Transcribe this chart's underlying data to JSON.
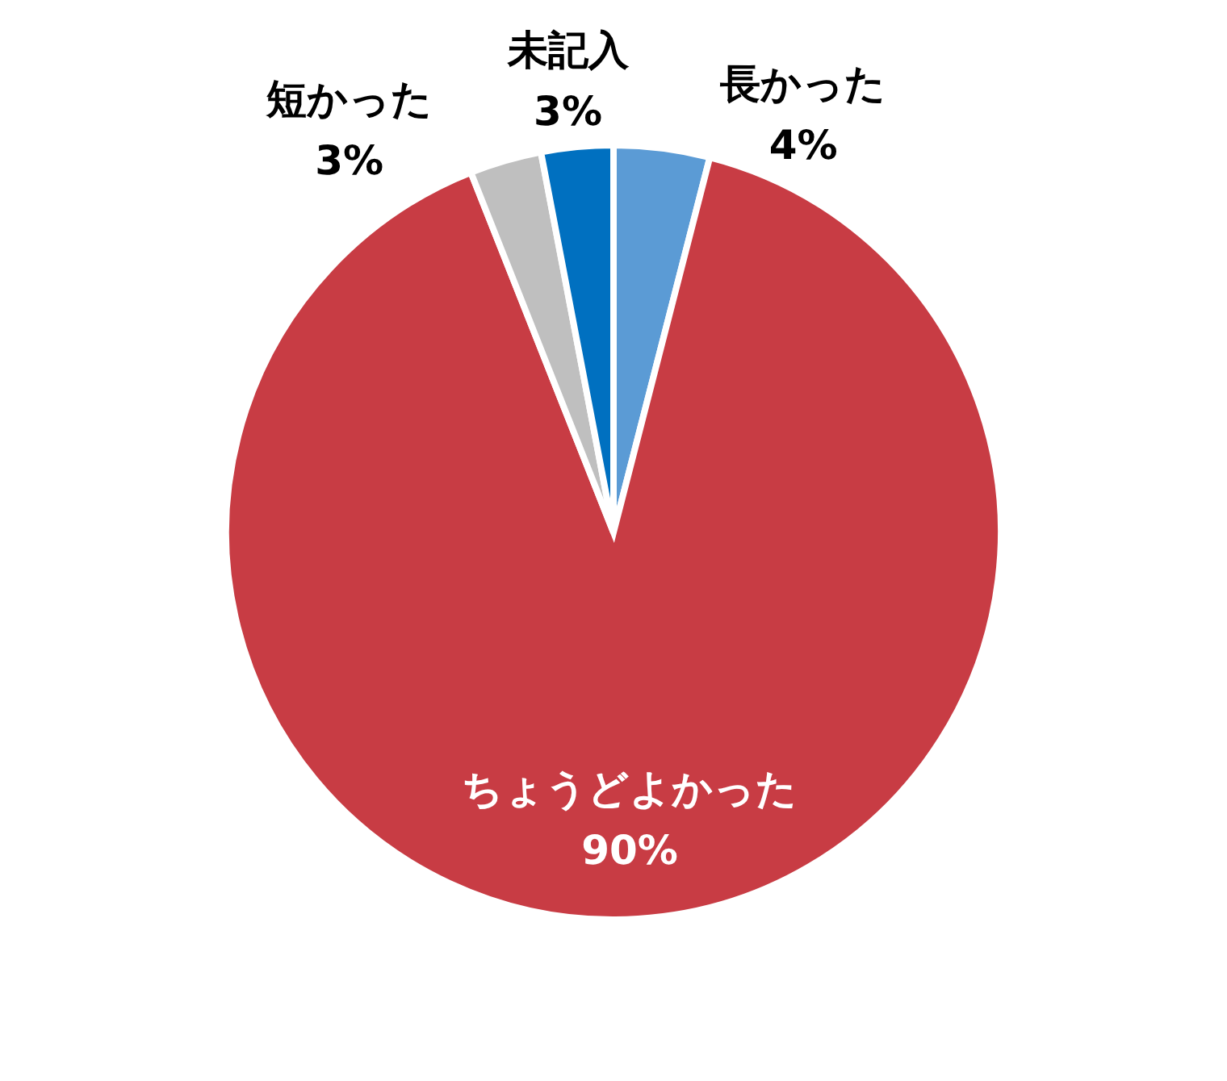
{
  "chart_data": {
    "type": "pie",
    "categories": [
      "長かった",
      "ちょうどよかった",
      "短かった",
      "未記入"
    ],
    "values": [
      4,
      90,
      3,
      3
    ],
    "colors": [
      "#5b9bd5",
      "#c83c44",
      "#bfbfbf",
      "#0070c0"
    ],
    "value_labels": [
      "4%",
      "90%",
      "3%",
      "3%"
    ]
  }
}
